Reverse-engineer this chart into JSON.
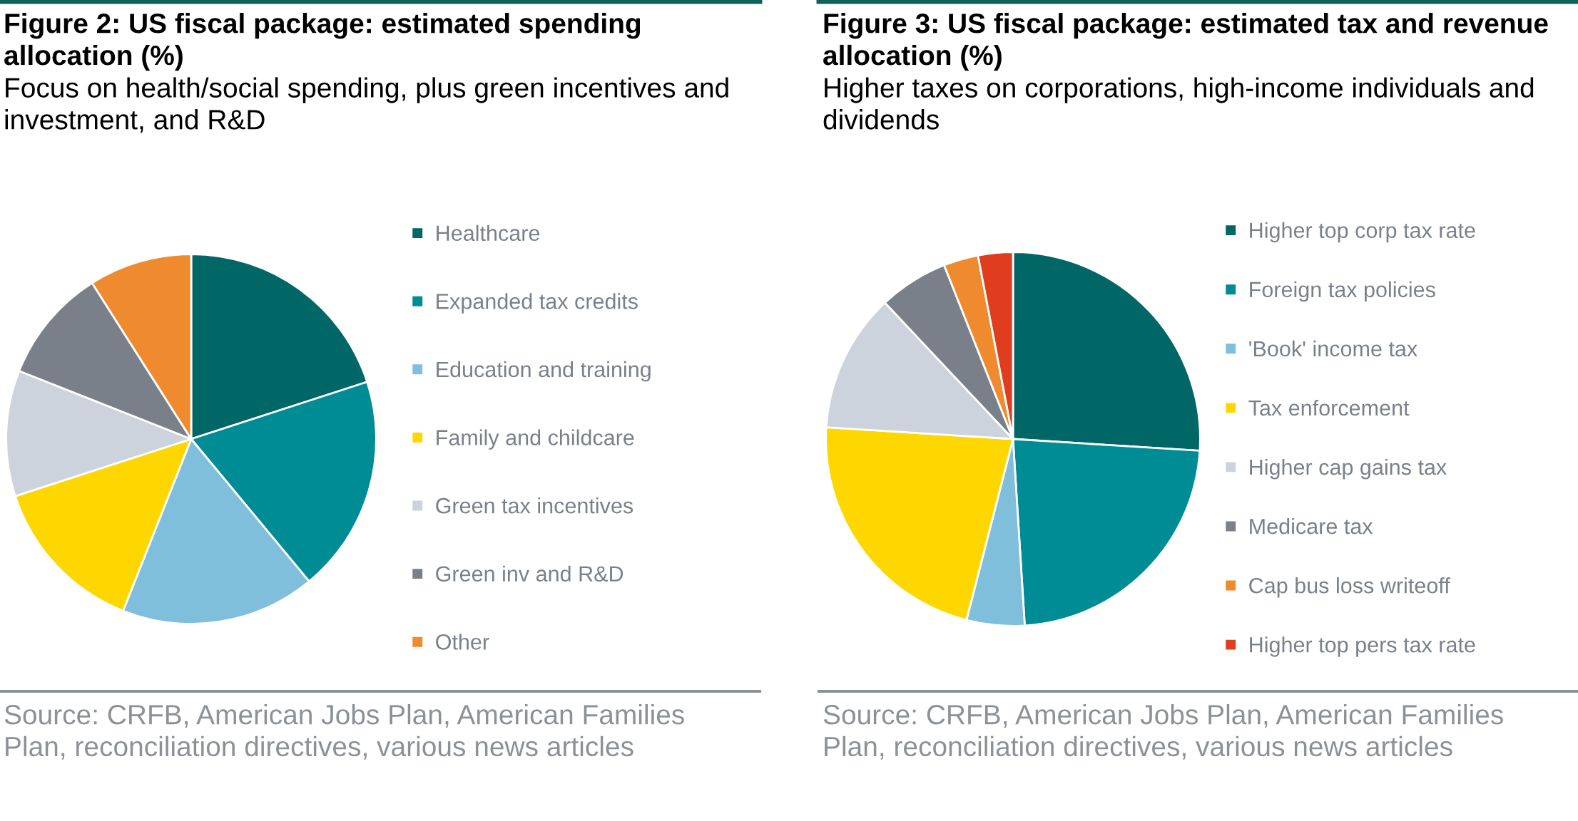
{
  "chart_data": [
    {
      "type": "pie",
      "title": "Figure 2: US fiscal package: estimated spending allocation (%)",
      "subtitle": "Focus on health/social spending, plus green incentives and investment, and R&D",
      "categories": [
        "Healthcare",
        "Expanded tax credits",
        "Education and training",
        "Family and childcare",
        "Green tax incentives",
        "Green inv and R&D",
        "Other"
      ],
      "values": [
        20,
        19,
        17,
        14,
        11,
        10,
        9
      ],
      "colors": [
        "#006666",
        "#008C95",
        "#7FBFDC",
        "#FFD700",
        "#CDD3DC",
        "#7A808A",
        "#F08A2E"
      ],
      "legend": "right",
      "annotations": [
        "Source: CRFB, American Jobs Plan, American Families Plan, reconciliation directives, various news articles"
      ]
    },
    {
      "type": "pie",
      "title": "Figure 3: US fiscal package: estimated tax and revenue allocation (%)",
      "subtitle": "Higher taxes on corporations, high-income individuals and dividends",
      "categories": [
        "Higher top corp tax rate",
        "Foreign tax policies",
        "'Book' income tax",
        "Tax enforcement",
        "Higher cap gains tax",
        "Medicare tax",
        "Cap bus loss writeoff",
        "Higher top pers tax rate"
      ],
      "values": [
        26,
        23,
        5,
        22,
        12,
        6,
        3,
        3
      ],
      "colors": [
        "#006666",
        "#008C95",
        "#7FBFDC",
        "#FFD700",
        "#CDD3DC",
        "#7A808A",
        "#F08A2E",
        "#E03C1E"
      ],
      "legend": "right",
      "annotations": [
        "Source: CRFB, American Jobs Plan, American Families Plan, reconciliation directives, various news articles"
      ]
    }
  ]
}
